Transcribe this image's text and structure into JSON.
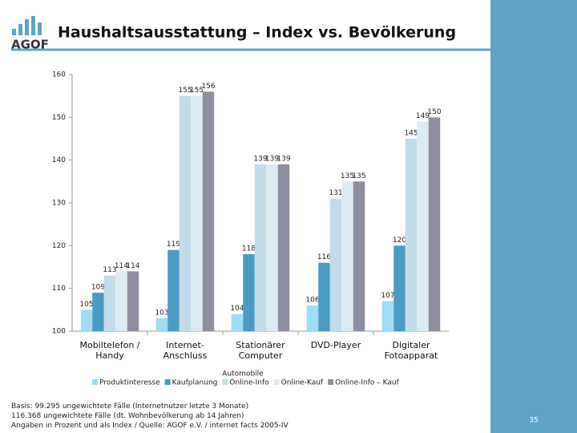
{
  "slide": {
    "logo": "AGOF",
    "page_number": "35",
    "footnotes": [
      "Basis: 99.295 ungewichtete Fälle (Internetnutzer letzte 3 Monate)",
      "116.368 ungewichtete Fälle (dt. Wohnbevölkerung ab 14 Jahren)",
      "Angaben in Prozent und als Index / Quelle: AGOF e.V. / internet facts 2005-IV"
    ]
  },
  "chart_data": {
    "type": "bar",
    "title": "Haushaltsausstattung – Index vs. Bevölkerung",
    "annotation": "Automobile",
    "categories": [
      "Mobiltelefon / Handy",
      "Internet-Anschluss",
      "Stationärer Computer",
      "DVD-Player",
      "Digitaler Fotoapparat"
    ],
    "series": [
      {
        "name": "Produktinteresse",
        "color": "#9fdcf5",
        "values": [
          105,
          103,
          104,
          106,
          107
        ]
      },
      {
        "name": "Kaufplanung",
        "color": "#4b9cc5",
        "values": [
          109,
          119,
          118,
          116,
          120
        ]
      },
      {
        "name": "Online-Info",
        "color": "#c2dde9",
        "values": [
          113,
          155,
          139,
          131,
          145
        ]
      },
      {
        "name": "Online-Kauf",
        "color": "#dceaf1",
        "values": [
          114,
          155,
          139,
          135,
          149
        ]
      },
      {
        "name": "Online-Info – Kauf",
        "color": "#8f8ea0",
        "values": [
          114,
          156,
          139,
          135,
          150
        ]
      }
    ],
    "ylim": [
      100,
      160
    ],
    "yticks": [
      100,
      110,
      120,
      130,
      140,
      150,
      160
    ]
  }
}
